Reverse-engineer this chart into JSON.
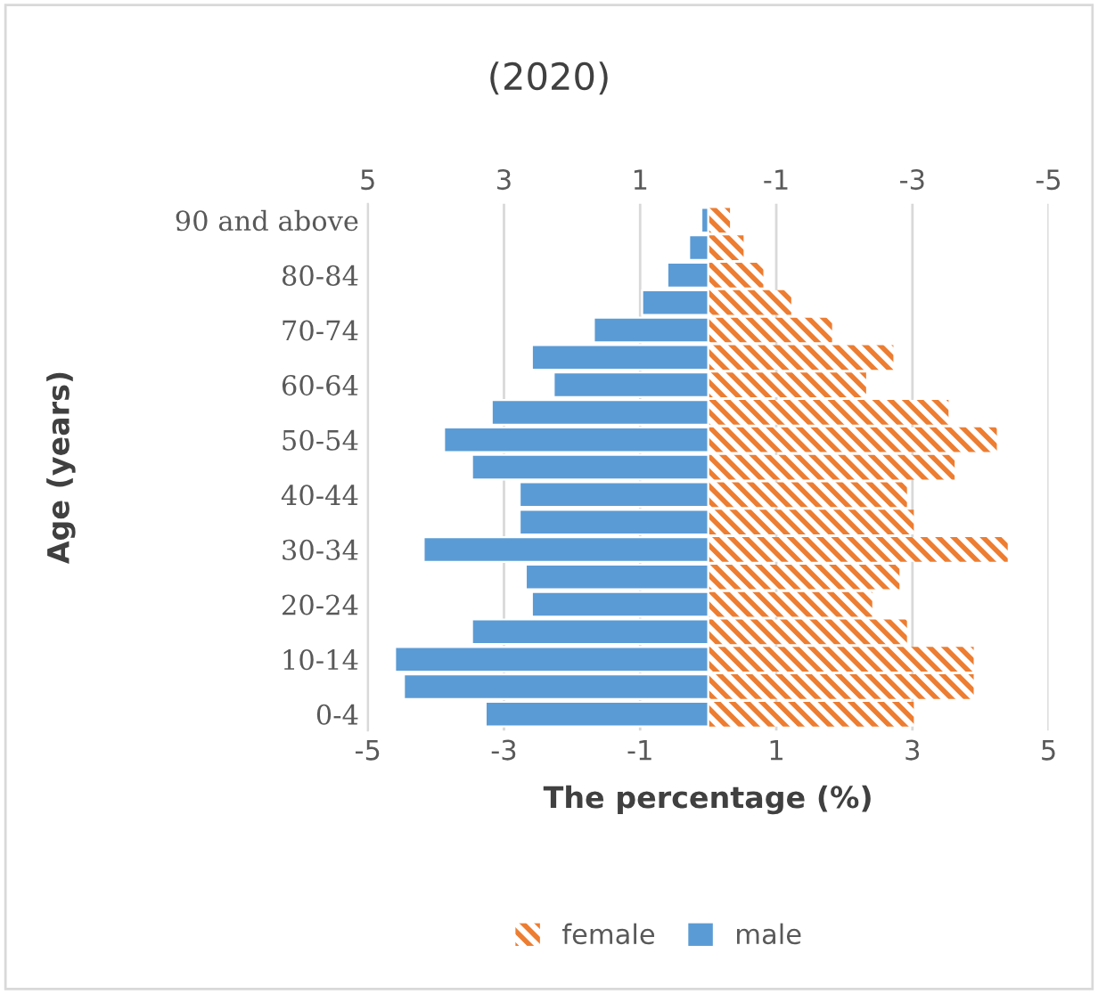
{
  "chart_data": {
    "type": "bar",
    "orientation": "horizontal",
    "stacked": true,
    "title": "(2020)",
    "xlabel": "The percentage (%)",
    "ylabel": "Age (years)",
    "categories": [
      "90 and above",
      null,
      "80-84",
      null,
      "70-74",
      null,
      "60-64",
      null,
      "50-54",
      null,
      "40-44",
      null,
      "30-34",
      null,
      "20-24",
      null,
      "10-14",
      null,
      "0-4"
    ],
    "series": [
      {
        "name": "female",
        "color": "#ed7d31",
        "values": [
          0.32,
          0.52,
          0.81,
          1.22,
          1.82,
          2.72,
          2.32,
          3.53,
          4.24,
          3.62,
          2.92,
          3.02,
          4.4,
          2.81,
          2.41,
          2.92,
          3.9,
          3.9,
          3.02
        ]
      },
      {
        "name": "male",
        "color": "#5b9bd5",
        "values": [
          -0.1,
          -0.28,
          -0.6,
          -0.97,
          -1.68,
          -2.59,
          -2.27,
          -3.18,
          -3.88,
          -3.47,
          -2.77,
          -2.77,
          -4.18,
          -2.68,
          -2.59,
          -3.47,
          -4.6,
          -4.47,
          -3.27
        ]
      }
    ],
    "xlim": [
      -5,
      5
    ],
    "xticks": [
      -5,
      -3,
      -1,
      1,
      3,
      5
    ],
    "x2lim": [
      5,
      -5
    ],
    "x2ticks": [
      5,
      3,
      1,
      -1,
      -3,
      -5
    ],
    "grid": "x",
    "legend": "bottom"
  }
}
